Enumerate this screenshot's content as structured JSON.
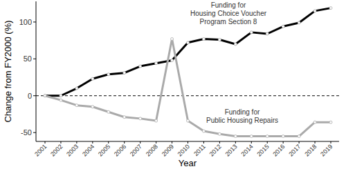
{
  "chart_data": {
    "type": "line",
    "x_label": "Year",
    "y_label": "Change from FY2000 (%)",
    "categories": [
      "2001",
      "2002",
      "2003",
      "2004",
      "2005",
      "2006",
      "2007",
      "2008",
      "2009",
      "2010",
      "2011",
      "2012",
      "2013",
      "2014",
      "2015",
      "2016",
      "2017",
      "2018",
      "2019"
    ],
    "series": [
      {
        "name": "Funding for\nHousing Choice Voucher\nProgram Section 8",
        "color": "#000000",
        "marker": "circle",
        "values": [
          0,
          0,
          10,
          23,
          29,
          31,
          40,
          44,
          48,
          72,
          77,
          76,
          70,
          86,
          84,
          94,
          99,
          115,
          119
        ]
      },
      {
        "name": "Funding for\nPublic Housing Repairs",
        "color": "#aaaaaa",
        "marker": "circle",
        "values": [
          0,
          -6,
          -13,
          -15,
          -22,
          -29,
          -31,
          -34,
          77,
          -34,
          -48,
          -52,
          -55,
          -55,
          -55,
          -55,
          -55,
          -36,
          -36
        ]
      }
    ],
    "reference_line": 0,
    "ylim": [
      -62,
      128
    ],
    "yticks": [
      -50,
      0,
      50,
      100
    ],
    "grid": false
  }
}
